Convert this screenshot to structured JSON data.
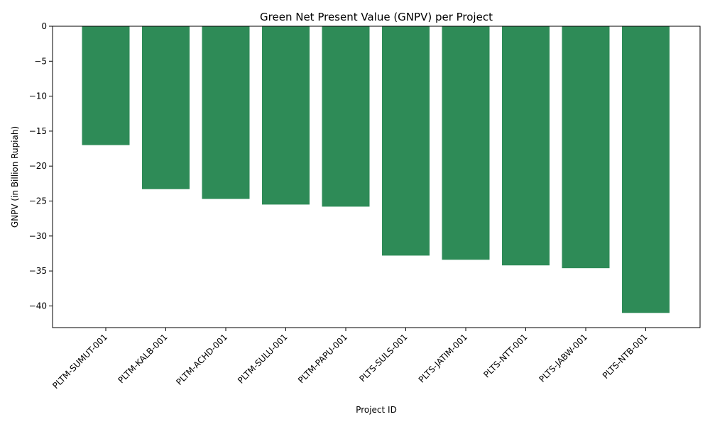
{
  "chart_data": {
    "type": "bar",
    "title": "Green Net Present Value (GNPV) per Project",
    "xlabel": "Project ID",
    "ylabel": "GNPV (in Billion Rupiah)",
    "categories": [
      "PLTM-SUMUT-001",
      "PLTM-KALB-001",
      "PLTM-ACHD-001",
      "PLTM-SULU-001",
      "PLTM-PAPU-001",
      "PLTS-SULS-001",
      "PLTS-JATIM-001",
      "PLTS-NTT-001",
      "PLTS-JABW-001",
      "PLTS-NTB-001"
    ],
    "values": [
      -17.0,
      -23.3,
      -24.7,
      -25.5,
      -25.8,
      -32.8,
      -33.4,
      -34.2,
      -34.6,
      -41.0
    ],
    "ylim": [
      -43.1,
      0
    ],
    "yticks": [
      0,
      -5,
      -10,
      -15,
      -20,
      -25,
      -30,
      -35,
      -40
    ],
    "bar_color": "#2e8b57",
    "grid": false,
    "legend": "none"
  }
}
